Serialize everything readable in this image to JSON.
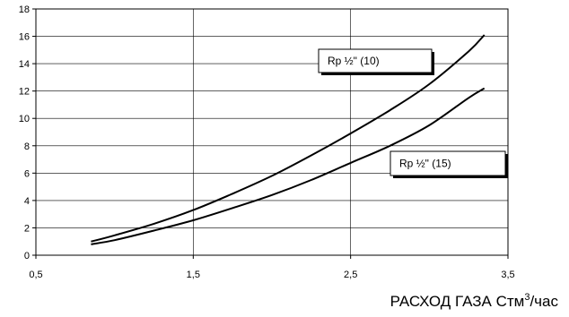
{
  "chart_data": {
    "type": "line",
    "title": "",
    "xlabel_main": "РАСХОД ГАЗА Стм",
    "xlabel_sup": "3",
    "xlabel_tail": "/час",
    "ylabel": "",
    "xlim": [
      0.5,
      3.5
    ],
    "ylim": [
      0,
      18
    ],
    "x_ticks": [
      0.5,
      1.5,
      2.5,
      3.5
    ],
    "x_tick_labels": [
      "0,5",
      "1,5",
      "2,5",
      "3,5"
    ],
    "y_ticks": [
      0,
      2,
      4,
      6,
      8,
      10,
      12,
      14,
      16,
      18
    ],
    "y_tick_labels": [
      "0",
      "2",
      "4",
      "6",
      "8",
      "10",
      "12",
      "14",
      "16",
      "18"
    ],
    "grid": true,
    "series": [
      {
        "name": "Rp ½\" (10)",
        "x": [
          0.85,
          1.0,
          1.25,
          1.5,
          1.75,
          2.0,
          2.25,
          2.5,
          2.75,
          3.0,
          3.25,
          3.35
        ],
        "values": [
          1.0,
          1.45,
          2.3,
          3.3,
          4.5,
          5.8,
          7.3,
          8.9,
          10.6,
          12.5,
          14.9,
          16.1
        ]
      },
      {
        "name": "Rp ½\" (15)",
        "x": [
          0.85,
          1.0,
          1.25,
          1.5,
          1.75,
          2.0,
          2.25,
          2.5,
          2.75,
          3.0,
          3.25,
          3.35
        ],
        "values": [
          0.8,
          1.1,
          1.8,
          2.55,
          3.45,
          4.4,
          5.5,
          6.75,
          8.0,
          9.5,
          11.5,
          12.2
        ]
      }
    ]
  }
}
